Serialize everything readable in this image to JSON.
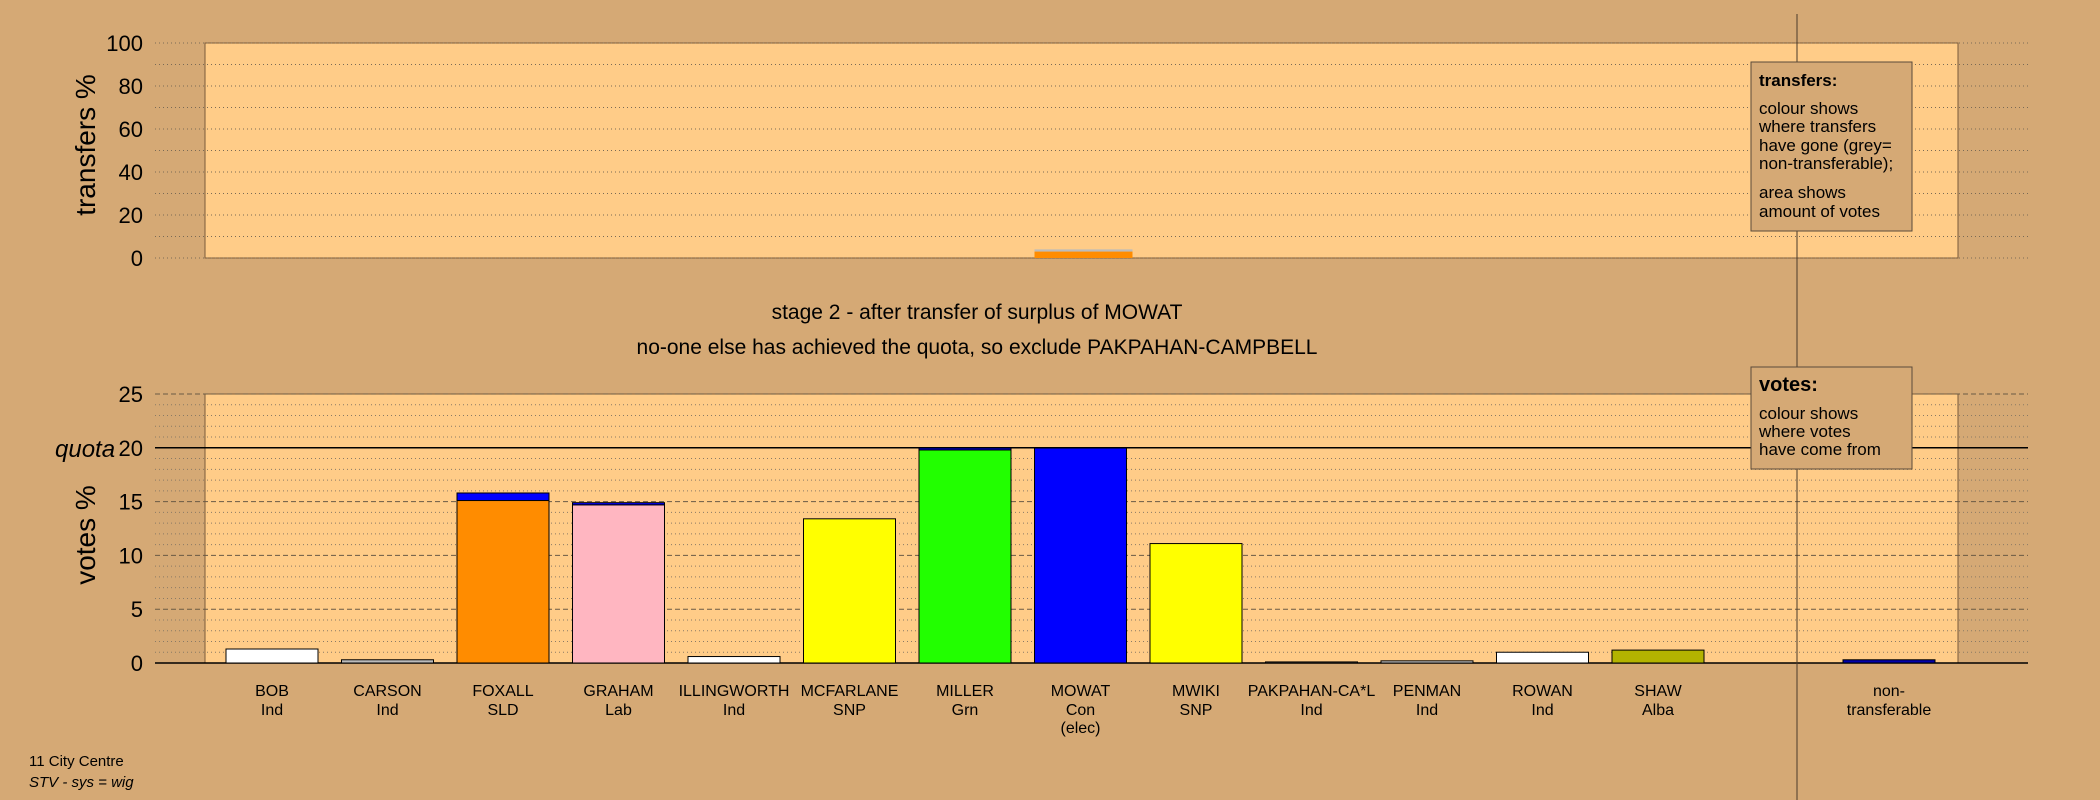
{
  "chart_data": [
    {
      "type": "bar",
      "name": "transfers",
      "ylabel": "transfers %",
      "ylim": [
        0,
        100
      ],
      "yticks": [
        0,
        20,
        40,
        60,
        80,
        100
      ],
      "series": [
        {
          "candidate": "MOWAT",
          "values": [
            {
              "color": "#ff8c00",
              "value": 3
            },
            {
              "color": "#bbbbbb",
              "value": 1
            }
          ]
        }
      ]
    },
    {
      "type": "bar",
      "name": "votes",
      "ylabel": "votes %",
      "ylim": [
        0,
        25
      ],
      "yticks": [
        0,
        5,
        10,
        15,
        20,
        25
      ],
      "quota": 20,
      "quota_label": "quota",
      "candidates": [
        {
          "name": "BOB",
          "party": "Ind",
          "segments": [
            {
              "color": "#ffffff",
              "value": 1.3
            }
          ]
        },
        {
          "name": "CARSON",
          "party": "Ind",
          "segments": [
            {
              "color": "#bbbbbb",
              "value": 0.3
            }
          ]
        },
        {
          "name": "FOXALL",
          "party": "SLD",
          "segments": [
            {
              "color": "#ff8c00",
              "value": 15.1
            },
            {
              "color": "#0000ff",
              "value": 0.7
            }
          ]
        },
        {
          "name": "GRAHAM",
          "party": "Lab",
          "segments": [
            {
              "color": "#ffb6c1",
              "value": 14.7
            },
            {
              "color": "#0000ff",
              "value": 0.2
            }
          ]
        },
        {
          "name": "ILLINGWORTH",
          "party": "Ind",
          "segments": [
            {
              "color": "#ffffff",
              "value": 0.6
            }
          ]
        },
        {
          "name": "MCFARLANE",
          "party": "SNP",
          "segments": [
            {
              "color": "#ffff00",
              "value": 13.4
            }
          ]
        },
        {
          "name": "MILLER",
          "party": "Grn",
          "segments": [
            {
              "color": "#22ff00",
              "value": 19.8
            },
            {
              "color": "#0000ff",
              "value": 0.2
            }
          ]
        },
        {
          "name": "MOWAT",
          "party": "Con",
          "note": "(elec)",
          "segments": [
            {
              "color": "#0000ff",
              "value": 20
            }
          ]
        },
        {
          "name": "MWIKI",
          "party": "SNP",
          "segments": [
            {
              "color": "#ffff00",
              "value": 11.1
            }
          ]
        },
        {
          "name": "PAKPAHAN-CA*L",
          "party": "Ind",
          "segments": [
            {
              "color": "#cccccc",
              "value": 0.1
            }
          ]
        },
        {
          "name": "PENMAN",
          "party": "Ind",
          "segments": [
            {
              "color": "#cccccc",
              "value": 0.2
            }
          ]
        },
        {
          "name": "ROWAN",
          "party": "Ind",
          "segments": [
            {
              "color": "#ffffff",
              "value": 1.0
            }
          ]
        },
        {
          "name": "SHAW",
          "party": "Alba",
          "segments": [
            {
              "color": "#b3b300",
              "value": 1.2
            }
          ]
        }
      ],
      "nontransferable": {
        "label_line1": "non-",
        "label_line2": "transferable",
        "segments": [
          {
            "color": "#0000aa",
            "value": 0.3
          }
        ]
      }
    }
  ],
  "titles": {
    "line1": "stage 2 - after transfer of surplus of MOWAT",
    "line2": "no-one else has achieved the quota, so exclude PAKPAHAN-CAMPBELL"
  },
  "legend_transfers": {
    "title": "transfers:",
    "lines": [
      "colour shows",
      "where transfers",
      "have gone (grey=",
      "non-transferable);"
    ],
    "lines2": [
      "area shows",
      "amount of votes"
    ]
  },
  "legend_votes": {
    "title": "votes:",
    "lines": [
      "colour shows",
      "where votes",
      "have come from"
    ]
  },
  "footer": {
    "ward": "11 City Centre",
    "system": "STV - sys = wig"
  },
  "colors": {
    "background": "#d5a975",
    "plot_area": "#ffcc88"
  }
}
